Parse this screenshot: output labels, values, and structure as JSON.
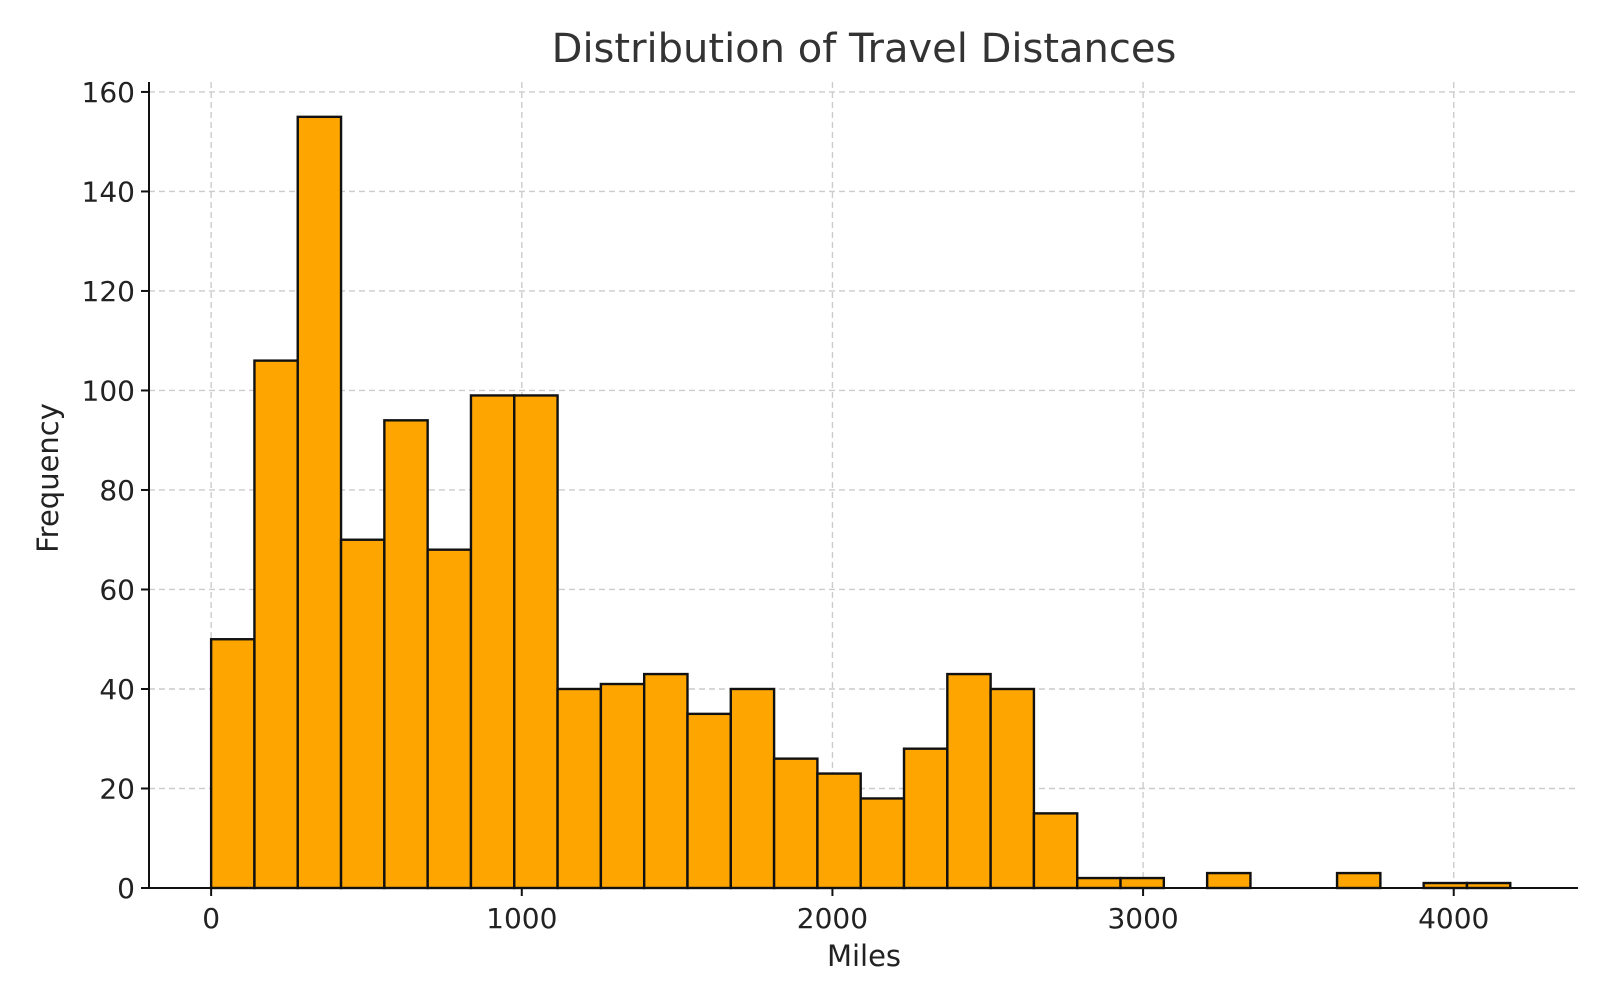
{
  "chart_data": {
    "type": "bar",
    "title": "Distribution of Travel Distances",
    "xlabel": "Miles",
    "ylabel": "Frequency",
    "xlim": [
      -200,
      4400
    ],
    "ylim": [
      0,
      162
    ],
    "x_ticks": [
      0,
      1000,
      2000,
      3000,
      4000
    ],
    "y_ticks": [
      0,
      20,
      40,
      60,
      80,
      100,
      120,
      140,
      160
    ],
    "grid": true,
    "bar_color": "#FFA500",
    "edge_color": "#111111",
    "bin_start": 0,
    "bin_width": 139.4,
    "values": [
      50,
      106,
      155,
      70,
      94,
      68,
      99,
      99,
      40,
      41,
      43,
      35,
      40,
      26,
      23,
      18,
      28,
      43,
      40,
      15,
      2,
      2,
      0,
      3,
      0,
      0,
      3,
      0,
      1,
      1
    ]
  }
}
